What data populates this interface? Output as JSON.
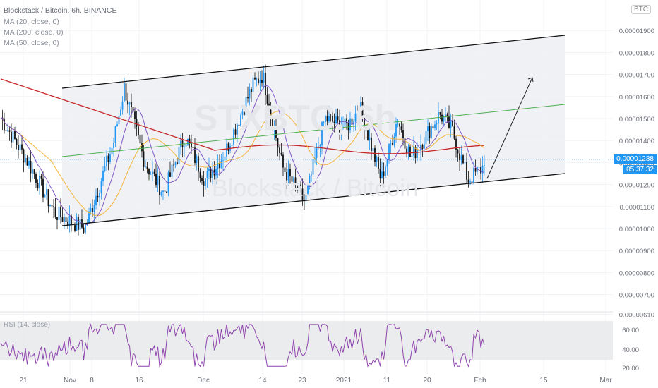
{
  "header": {
    "symbol_line": "Blockstack / Bitcoin, 6h, BINANCE",
    "ma_lines": [
      "MA (20, close, 0)",
      "MA (200, close, 0)",
      "MA (50, close, 0)"
    ],
    "quote_badge": "BTC",
    "watermark_symbol": "STXBTC, 6h",
    "watermark_name": "Blockstack / Bitcoin"
  },
  "price_tags": {
    "last_price": "0.00001288",
    "countdown": "05:37:32"
  },
  "rsi": {
    "legend": "RSI (14, close)",
    "ticks": [
      "60.00",
      "40.00",
      "20.00"
    ]
  },
  "colors": {
    "candle_up": "#2196f3",
    "candle_down": "#111111",
    "ma20": "#7e57c2",
    "ma50": "#f5b43c",
    "ma200": "#c62828",
    "midline": "#4caf50",
    "channel": "#111111",
    "rsi": "#8e44ad"
  },
  "chart_data": {
    "type": "candlestick",
    "title": "Blockstack / Bitcoin, 6h, BINANCE",
    "y_axis_ticks": [
      "0.00001900",
      "0.00001800",
      "0.00001700",
      "0.00001600",
      "0.00001500",
      "0.00001400",
      "0.00001300",
      "0.00001200",
      "0.00001100",
      "0.00001000",
      "0.00000900",
      "0.00000800",
      "0.00000700",
      "0.00000610"
    ],
    "ylim": [
      6.1e-06,
      2.01e-05
    ],
    "x_axis_ticks": [
      "21",
      "Nov",
      "8",
      "16",
      "Dec",
      "14",
      "23",
      "2021",
      "11",
      "20",
      "Feb",
      "15",
      "Mar"
    ],
    "approx_close_path": [
      [
        "Oct 21",
        1.51e-05
      ],
      [
        "Oct 26",
        1.3e-05
      ],
      [
        "Oct 31",
        1.07e-05
      ],
      [
        "Nov 6",
        1e-05
      ],
      [
        "Nov 12",
        1.38e-05
      ],
      [
        "Nov 14",
        1.64e-05
      ],
      [
        "Nov 18",
        1.3e-05
      ],
      [
        "Nov 22",
        1.16e-05
      ],
      [
        "Nov 26",
        1.42e-05
      ],
      [
        "Dec 2",
        1.22e-05
      ],
      [
        "Dec 6",
        1.34e-05
      ],
      [
        "Dec 12",
        1.65e-05
      ],
      [
        "Dec 14",
        1.7e-05
      ],
      [
        "Dec 18",
        1.28e-05
      ],
      [
        "Dec 24",
        1.12e-05
      ],
      [
        "Dec 27",
        1.5e-05
      ],
      [
        "Jan 2",
        1.46e-05
      ],
      [
        "Jan 6",
        1.55e-05
      ],
      [
        "Jan 10",
        1.22e-05
      ],
      [
        "Jan 14",
        1.5e-05
      ],
      [
        "Jan 18",
        1.32e-05
      ],
      [
        "Jan 24",
        1.52e-05
      ],
      [
        "Jan 27",
        1.45e-05
      ],
      [
        "Jan 30",
        1.22e-05
      ],
      [
        "Feb 1",
        1.288e-05
      ]
    ],
    "channel": {
      "upper": [
        [
          "Oct 30",
          1.62e-05
        ],
        [
          "Feb 15",
          1.86e-05
        ]
      ],
      "lower": [
        [
          "Oct 30",
          1e-05
        ],
        [
          "Feb 15",
          1.23e-05
        ]
      ],
      "middle": [
        [
          "Oct 30",
          1.31e-05
        ],
        [
          "Feb 15",
          1.54e-05
        ]
      ]
    },
    "projection_arrow": [
      [
        "Feb 1",
        1.21e-05
      ],
      [
        "Feb 6",
        1.66e-05
      ]
    ],
    "series": [
      {
        "name": "MA (20, close, 0)"
      },
      {
        "name": "MA (200, close, 0)"
      },
      {
        "name": "MA (50, close, 0)"
      },
      {
        "name": "RSI (14, close)",
        "range": [
          20,
          60
        ]
      }
    ],
    "last_price": 1.288e-05
  }
}
